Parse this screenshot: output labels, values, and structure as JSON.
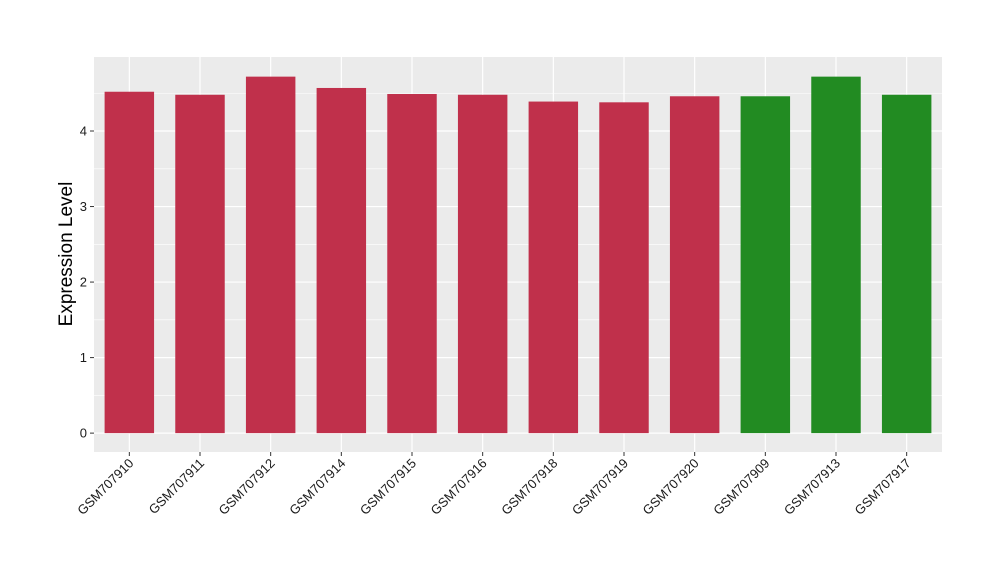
{
  "chart_data": {
    "type": "bar",
    "ylabel": "Expression Level",
    "xlabel": "",
    "title": "",
    "ylim": [
      -0.25,
      4.98
    ],
    "y_ticks": [
      0,
      1,
      2,
      3,
      4
    ],
    "grid": true,
    "categories": [
      "GSM707910",
      "GSM707911",
      "GSM707912",
      "GSM707914",
      "GSM707915",
      "GSM707916",
      "GSM707918",
      "GSM707919",
      "GSM707920",
      "GSM707909",
      "GSM707913",
      "GSM707917"
    ],
    "values": [
      4.52,
      4.48,
      4.72,
      4.57,
      4.49,
      4.48,
      4.39,
      4.38,
      4.46,
      4.46,
      4.72,
      4.48
    ],
    "bar_colors": [
      "#c0304b",
      "#c0304b",
      "#c0304b",
      "#c0304b",
      "#c0304b",
      "#c0304b",
      "#c0304b",
      "#c0304b",
      "#c0304b",
      "#228b22",
      "#228b22",
      "#228b22"
    ],
    "panel_background": "#ebebeb",
    "grid_color": "#ffffff"
  }
}
